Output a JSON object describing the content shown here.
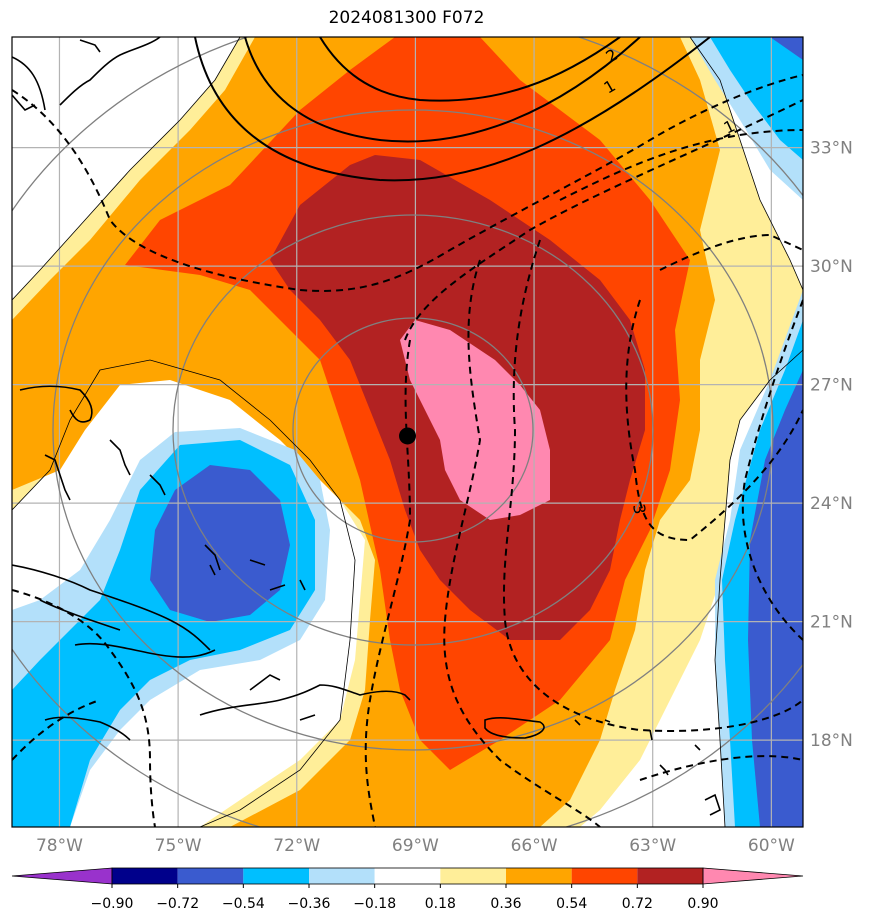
{
  "chart_data": {
    "type": "map-filled-contour",
    "title": "2024081300 F072",
    "longitude_ticks": [
      "78°W",
      "75°W",
      "72°W",
      "69°W",
      "66°W",
      "63°W",
      "60°W"
    ],
    "latitude_ticks": [
      "33°N",
      "30°N",
      "27°N",
      "24°N",
      "21°N",
      "18°N"
    ],
    "lon_values": [
      -78,
      -75,
      -72,
      -69,
      -66,
      -63,
      -60
    ],
    "lat_values": [
      33,
      30,
      27,
      24,
      21,
      18
    ],
    "extent": {
      "lon": [
        -79.2,
        -59.2
      ],
      "lat": [
        15.8,
        35.8
      ]
    },
    "colorbar": {
      "levels": [
        -0.9,
        -0.72,
        -0.54,
        -0.36,
        -0.18,
        0.18,
        0.36,
        0.54,
        0.72,
        0.9
      ],
      "level_labels": [
        "−0.90",
        "−0.72",
        "−0.54",
        "−0.36",
        "−0.18",
        "0.18",
        "0.36",
        "0.54",
        "0.72",
        "0.90"
      ],
      "colors": [
        "#9932cc",
        "#00008b",
        "#3a5bcf",
        "#00bfff",
        "#b3e0fa",
        "#ffffff",
        "#ffee99",
        "#ffa500",
        "#ff4500",
        "#b22222",
        "#ff88b0"
      ],
      "extend": "both"
    },
    "contour_labels": [
      "2",
      "1",
      "1",
      "3"
    ],
    "storm_center": {
      "lon": -69.2,
      "lat": 25.7
    }
  }
}
